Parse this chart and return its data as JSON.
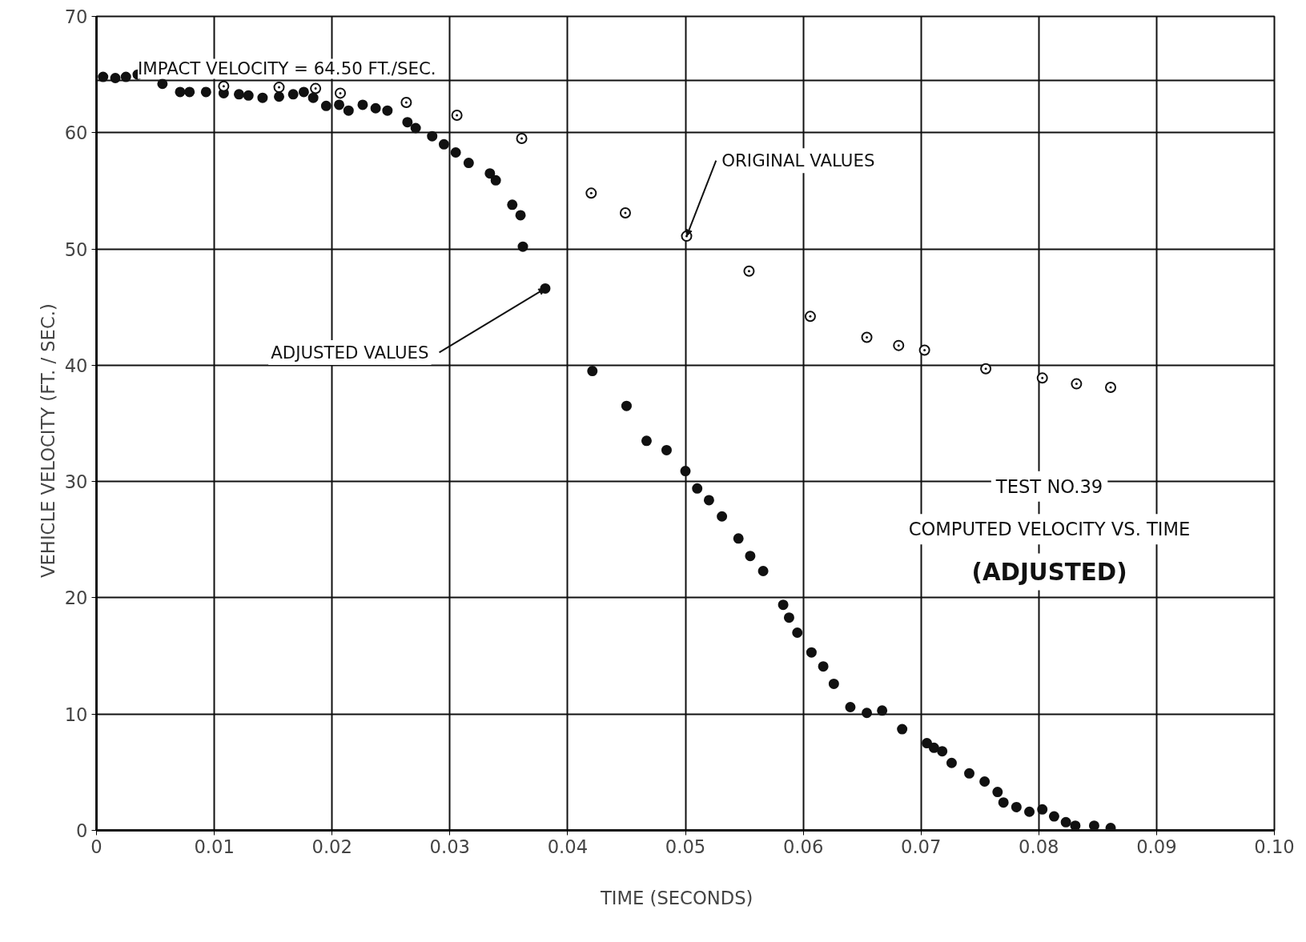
{
  "chart_data": {
    "type": "scatter",
    "title": "TEST NO.39",
    "subtitle": "COMPUTED VELOCITY VS. TIME",
    "xlabel": "TIME    (SECONDS)",
    "ylabel": "VEHICLE    VELOCITY    (FT. / SEC.)",
    "annotations": [
      "(ADJUSTED)",
      {
        "text": "ORIGINAL VALUES",
        "x": 0.0501,
        "y": 51.1
      },
      {
        "text": "ADJUSTED VALUES",
        "x": 0.0381,
        "y": 46.6
      }
    ],
    "series": [
      {
        "color": "#111111",
        "marker": "circle",
        "x": [
          0.00056,
          0.0016,
          0.0025,
          0.0035,
          0.0056,
          0.0071,
          0.0079,
          0.0093,
          0.0108,
          0.0121,
          0.0129,
          0.0141,
          0.0155,
          0.0167,
          0.0176,
          0.0184,
          0.0195,
          0.0206,
          0.0214,
          0.0226,
          0.0237,
          0.0247,
          0.0264,
          0.0271,
          0.0285,
          0.0295,
          0.0305,
          0.0316,
          0.0334,
          0.0339,
          0.0353,
          0.036,
          0.0362,
          0.0381,
          0.0421,
          0.045,
          0.0467,
          0.0484,
          0.05,
          0.051,
          0.052,
          0.0531,
          0.0545,
          0.0555,
          0.0566,
          0.0583,
          0.0588,
          0.0595,
          0.0607,
          0.0617,
          0.0626,
          0.064,
          0.0654,
          0.0667,
          0.0684,
          0.0705,
          0.0711,
          0.0718,
          0.0726,
          0.0741,
          0.0754,
          0.0765,
          0.077,
          0.0781,
          0.0792,
          0.0803,
          0.0813,
          0.0823,
          0.0831,
          0.0847,
          0.0861
        ],
        "values": [
          64.8,
          64.7,
          64.8,
          65.0,
          64.2,
          63.5,
          63.5,
          63.5,
          63.4,
          63.3,
          63.2,
          63.0,
          63.1,
          63.3,
          63.5,
          63.0,
          62.3,
          62.4,
          61.9,
          62.4,
          62.1,
          61.9,
          60.9,
          60.4,
          59.7,
          59.0,
          58.3,
          57.4,
          56.5,
          55.9,
          53.8,
          52.9,
          50.2,
          46.6,
          39.5,
          36.5,
          33.5,
          32.7,
          30.9,
          29.4,
          28.4,
          27.0,
          25.1,
          23.6,
          22.3,
          19.4,
          18.3,
          17.0,
          15.3,
          14.1,
          12.6,
          10.6,
          10.1,
          10.3,
          8.7,
          7.5,
          7.1,
          6.8,
          5.8,
          4.9,
          4.2,
          3.3,
          2.4,
          2.0,
          1.6,
          1.8,
          1.2,
          0.7,
          0.4,
          0.4,
          0.2
        ]
      },
      {
        "color": "#111111",
        "marker": "circle_dot",
        "x": [
          0.0108,
          0.0155,
          0.0186,
          0.0207,
          0.0263,
          0.0306,
          0.0361,
          0.042,
          0.0449,
          0.0501,
          0.0554,
          0.0606,
          0.0654,
          0.0681,
          0.0703,
          0.0755,
          0.0803,
          0.0832,
          0.0861
        ],
        "values": [
          64.0,
          63.9,
          63.8,
          63.4,
          62.6,
          61.5,
          59.5,
          54.8,
          53.1,
          51.1,
          48.1,
          44.2,
          42.4,
          41.7,
          41.3,
          39.7,
          38.9,
          38.4,
          38.1
        ]
      }
    ],
    "ref_lines": [
      {
        "axis": "y",
        "value": 64.5,
        "label": "IMPACT  VELOCITY = 64.50  FT./SEC.",
        "color": "#111111"
      }
    ],
    "xlim": [
      0,
      0.1
    ],
    "ylim": [
      0,
      70
    ],
    "xticks": [
      {
        "value": 0,
        "label": "0"
      },
      0.01,
      0.02,
      0.03,
      0.04,
      0.05,
      0.06,
      0.07,
      0.08,
      0.09,
      {
        "value": 0.1,
        "label": "0.10"
      }
    ],
    "yticks": [
      0,
      10,
      20,
      30,
      40,
      50,
      60,
      70
    ],
    "grid": true
  }
}
